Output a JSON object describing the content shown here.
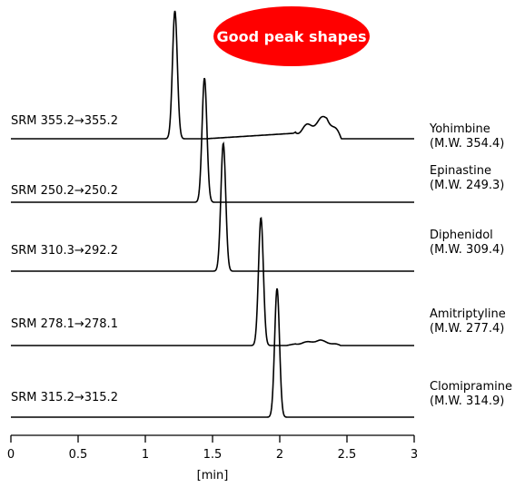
{
  "badge": {
    "text": "Good peak shapes",
    "color": "#ff0000"
  },
  "chart_data": {
    "type": "line",
    "xlabel": "[min]",
    "xlim": [
      0,
      3
    ],
    "xticks": [
      0,
      0.5,
      1,
      1.5,
      2,
      2.5,
      3
    ],
    "xtick_labels": [
      "0",
      "0.5",
      "1",
      "1.5",
      "2",
      "2.5",
      "3"
    ],
    "grid": false,
    "series": [
      {
        "srm": "SRM 355.2→355.2",
        "name": "Yohimbine",
        "mw": "(M.W. 354.4)",
        "peak_rt": 1.22,
        "peak_height": 1.0,
        "peak_width": 0.018,
        "hump": {
          "start": 1.45,
          "peak": 2.35,
          "end": 2.46,
          "height": 0.17
        }
      },
      {
        "srm": "SRM 250.2→250.2",
        "name": "Epinastine",
        "mw": "(M.W. 249.3)",
        "peak_rt": 1.44,
        "peak_height": 1.0,
        "peak_width": 0.018
      },
      {
        "srm": "SRM 310.3→292.2",
        "name": "Diphenidol",
        "mw": "(M.W. 309.4)",
        "peak_rt": 1.58,
        "peak_height": 1.0,
        "peak_width": 0.018
      },
      {
        "srm": "SRM 278.1→278.1",
        "name": "Amitriptyline",
        "mw": "(M.W. 277.4)",
        "peak_rt": 1.86,
        "peak_height": 1.0,
        "peak_width": 0.018,
        "hump": {
          "start": 2.05,
          "peak": 2.3,
          "end": 2.45,
          "height": 0.04
        }
      },
      {
        "srm": "SRM 315.2→315.2",
        "name": "Clomipramine",
        "mw": "(M.W. 314.9)",
        "peak_rt": 1.98,
        "peak_height": 1.0,
        "peak_width": 0.018
      }
    ]
  }
}
